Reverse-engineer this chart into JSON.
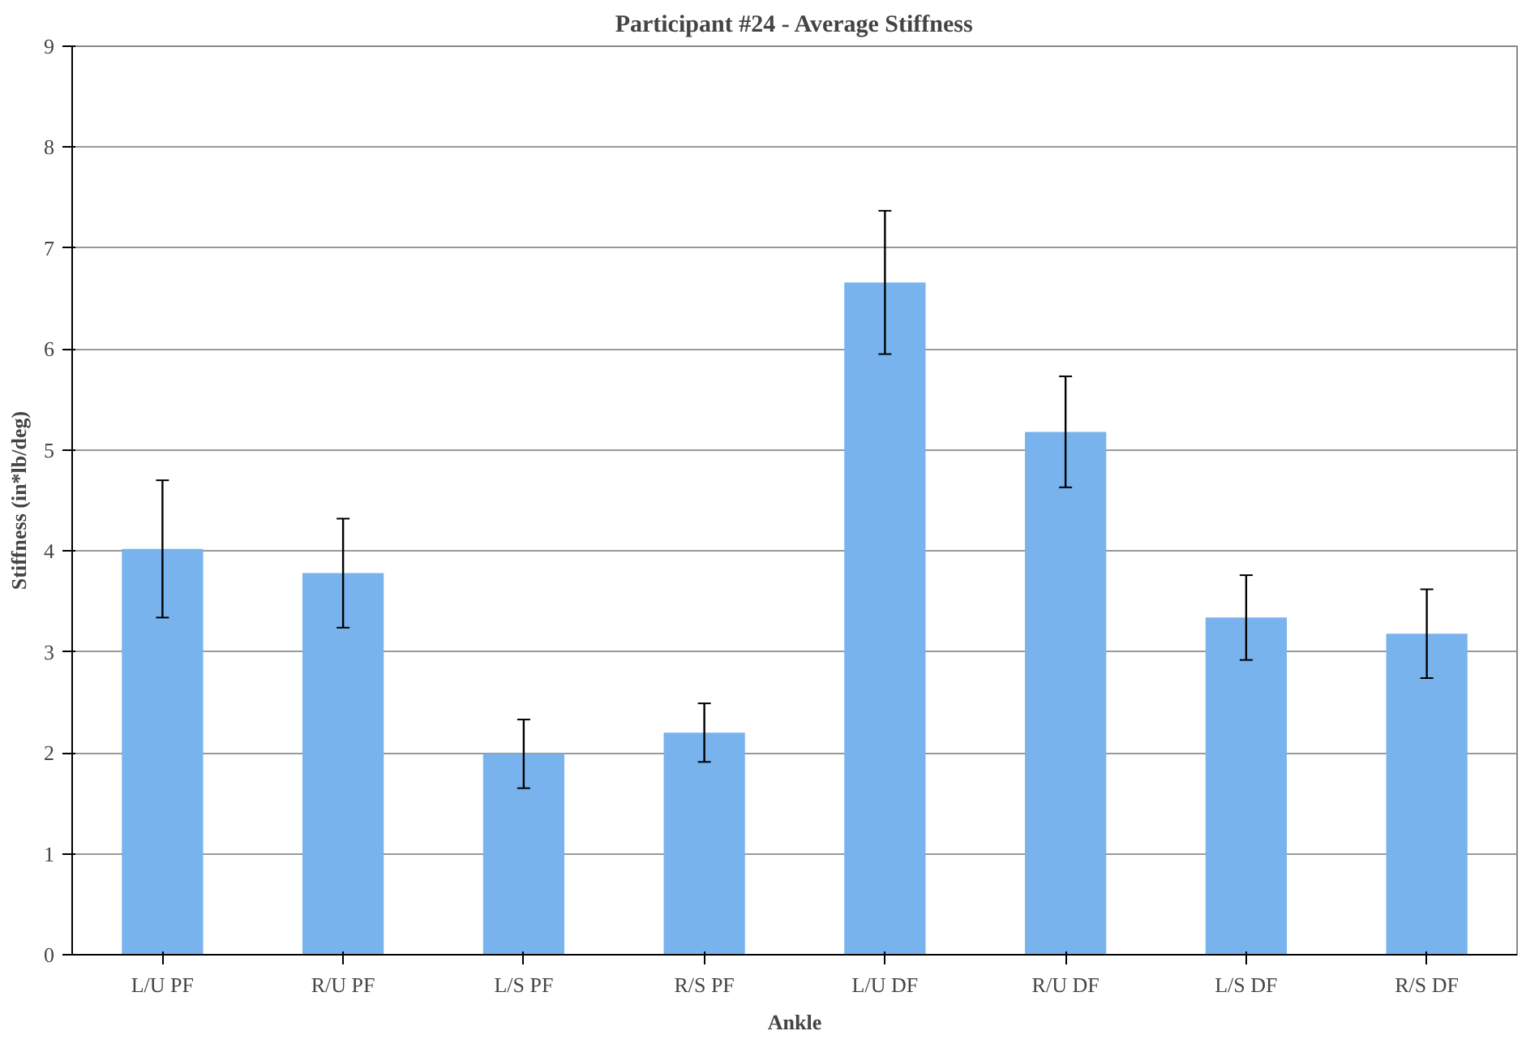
{
  "chart_data": {
    "type": "bar",
    "title": "Participant #24 - Average Stiffness",
    "xlabel": "Ankle",
    "ylabel": "Stiffness (in*lb/deg)",
    "categories": [
      "L/U PF",
      "R/U PF",
      "L/S PF",
      "R/S PF",
      "L/U DF",
      "R/U DF",
      "L/S DF",
      "R/S DF"
    ],
    "values": [
      4.02,
      3.78,
      1.99,
      2.2,
      6.66,
      5.18,
      3.34,
      3.18
    ],
    "errors": [
      0.68,
      0.54,
      0.34,
      0.29,
      0.71,
      0.55,
      0.42,
      0.44
    ],
    "color": "#78b3ee",
    "ylim": [
      0,
      9
    ],
    "yticks": [
      0,
      1,
      2,
      3,
      4,
      5,
      6,
      7,
      8,
      9
    ],
    "grid": "y"
  }
}
